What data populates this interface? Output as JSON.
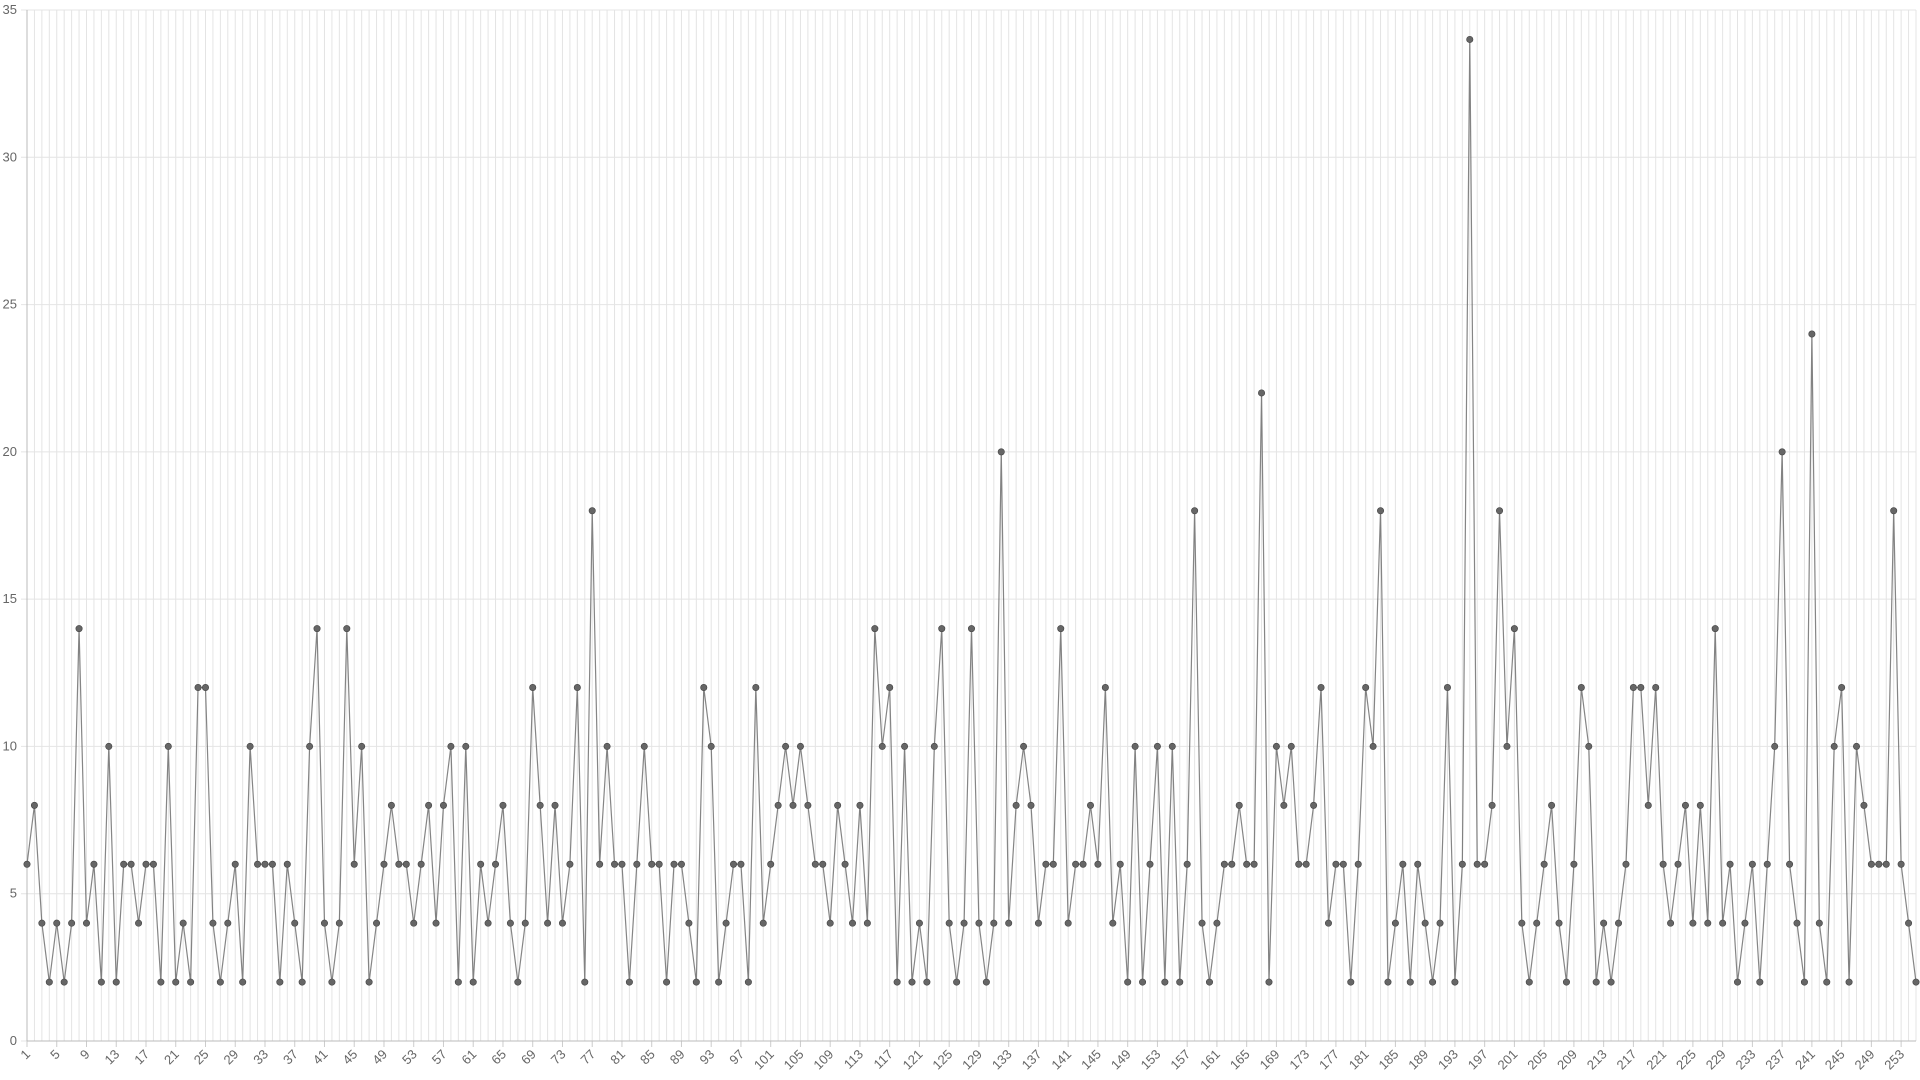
{
  "chart_data": {
    "type": "line",
    "x": [
      1,
      2,
      3,
      4,
      5,
      6,
      7,
      8,
      9,
      10,
      11,
      12,
      13,
      14,
      15,
      16,
      17,
      18,
      19,
      20,
      21,
      22,
      23,
      24,
      25,
      26,
      27,
      28,
      29,
      30,
      31,
      32,
      33,
      34,
      35,
      36,
      37,
      38,
      39,
      40,
      41,
      42,
      43,
      44,
      45,
      46,
      47,
      48,
      49,
      50,
      51,
      52,
      53,
      54,
      55,
      56,
      57,
      58,
      59,
      60,
      61,
      62,
      63,
      64,
      65,
      66,
      67,
      68,
      69,
      70,
      71,
      72,
      73,
      74,
      75,
      76,
      77,
      78,
      79,
      80,
      81,
      82,
      83,
      84,
      85,
      86,
      87,
      88,
      89,
      90,
      91,
      92,
      93,
      94,
      95,
      96,
      97,
      98,
      99,
      100,
      101,
      102,
      103,
      104,
      105,
      106,
      107,
      108,
      109,
      110,
      111,
      112,
      113,
      114,
      115,
      116,
      117,
      118,
      119,
      120,
      121,
      122,
      123,
      124,
      125,
      126,
      127,
      128,
      129,
      130,
      131,
      132,
      133,
      134,
      135,
      136,
      137,
      138,
      139,
      140,
      141,
      142,
      143,
      144,
      145,
      146,
      147,
      148,
      149,
      150,
      151,
      152,
      153,
      154,
      155,
      156,
      157,
      158,
      159,
      160,
      161,
      162,
      163,
      164,
      165,
      166,
      167,
      168,
      169,
      170,
      171,
      172,
      173,
      174,
      175,
      176,
      177,
      178,
      179,
      180,
      181,
      182,
      183,
      184,
      185,
      186,
      187,
      188,
      189,
      190,
      191,
      192,
      193,
      194,
      195,
      196,
      197,
      198,
      199,
      200,
      201,
      202,
      203,
      204,
      205,
      206,
      207,
      208,
      209,
      210,
      211,
      212,
      213,
      214,
      215,
      216,
      217,
      218,
      219,
      220,
      221,
      222,
      223,
      224,
      225,
      226,
      227,
      228,
      229,
      230,
      231,
      232,
      233,
      234,
      235,
      236,
      237,
      238,
      239,
      240,
      241,
      242,
      243,
      244,
      245,
      246,
      247,
      248,
      249,
      250,
      251,
      252,
      253,
      254,
      255
    ],
    "series": [
      {
        "color": "#666666",
        "values": [
          6,
          8,
          4,
          2,
          4,
          2,
          4,
          14,
          4,
          6,
          2,
          10,
          2,
          6,
          6,
          4,
          6,
          6,
          2,
          10,
          2,
          4,
          2,
          12,
          12,
          4,
          2,
          4,
          6,
          2,
          10,
          6,
          6,
          6,
          2,
          6,
          4,
          2,
          10,
          14,
          4,
          2,
          4,
          14,
          6,
          10,
          2,
          4,
          6,
          8,
          6,
          6,
          4,
          6,
          8,
          4,
          8,
          10,
          2,
          10,
          2,
          6,
          4,
          6,
          8,
          4,
          2,
          4,
          12,
          8,
          4,
          8,
          4,
          6,
          12,
          2,
          18,
          6,
          10,
          6,
          6,
          2,
          6,
          10,
          6,
          6,
          2,
          6,
          6,
          4,
          2,
          12,
          10,
          2,
          4,
          6,
          6,
          2,
          12,
          4,
          6,
          8,
          10,
          8,
          10,
          8,
          6,
          6,
          4,
          8,
          6,
          4,
          8,
          4,
          14,
          10,
          12,
          2,
          10,
          2,
          4,
          2,
          10,
          14,
          4,
          2,
          4,
          14,
          4,
          2,
          4,
          20,
          4,
          8,
          10,
          8,
          4,
          6,
          6,
          14,
          4,
          6,
          6,
          8,
          6,
          12,
          4,
          6,
          2,
          10,
          2,
          6,
          10,
          2,
          10,
          2,
          6,
          18,
          4,
          2,
          4,
          6,
          6,
          8,
          6,
          6,
          22,
          2,
          10,
          8,
          10,
          6,
          6,
          8,
          12,
          4,
          6,
          6,
          2,
          6,
          12,
          10,
          18,
          2,
          4,
          6,
          2,
          6,
          4,
          2,
          4,
          12,
          2,
          6,
          34,
          6,
          6,
          8,
          18,
          10,
          14,
          4,
          2,
          4,
          6,
          8,
          4,
          2,
          6,
          12,
          10,
          2,
          4,
          2,
          4,
          6,
          12,
          12,
          8,
          12,
          6,
          4,
          6,
          8,
          4,
          8,
          4,
          14,
          4,
          6,
          2,
          4,
          6,
          2,
          6,
          10,
          20,
          6,
          4,
          2,
          24,
          4,
          2,
          10,
          12,
          2,
          10,
          8,
          6,
          6,
          6,
          18,
          6,
          4,
          2
        ]
      }
    ],
    "xlim": [
      1,
      255
    ],
    "xticks": [
      1,
      5,
      9,
      13,
      17,
      21,
      25,
      29,
      33,
      37,
      41,
      45,
      49,
      53,
      57,
      61,
      65,
      69,
      73,
      77,
      81,
      85,
      89,
      93,
      97,
      101,
      105,
      109,
      113,
      117,
      121,
      125,
      129,
      133,
      137,
      141,
      145,
      149,
      153,
      157,
      161,
      165,
      169,
      173,
      177,
      181,
      185,
      189,
      193,
      197,
      201,
      205,
      209,
      213,
      217,
      221,
      225,
      229,
      233,
      237,
      241,
      245,
      249,
      253
    ],
    "ylim": [
      0,
      35
    ],
    "yticks": [
      0,
      5,
      10,
      15,
      20,
      25,
      30,
      35
    ],
    "grid": true
  }
}
